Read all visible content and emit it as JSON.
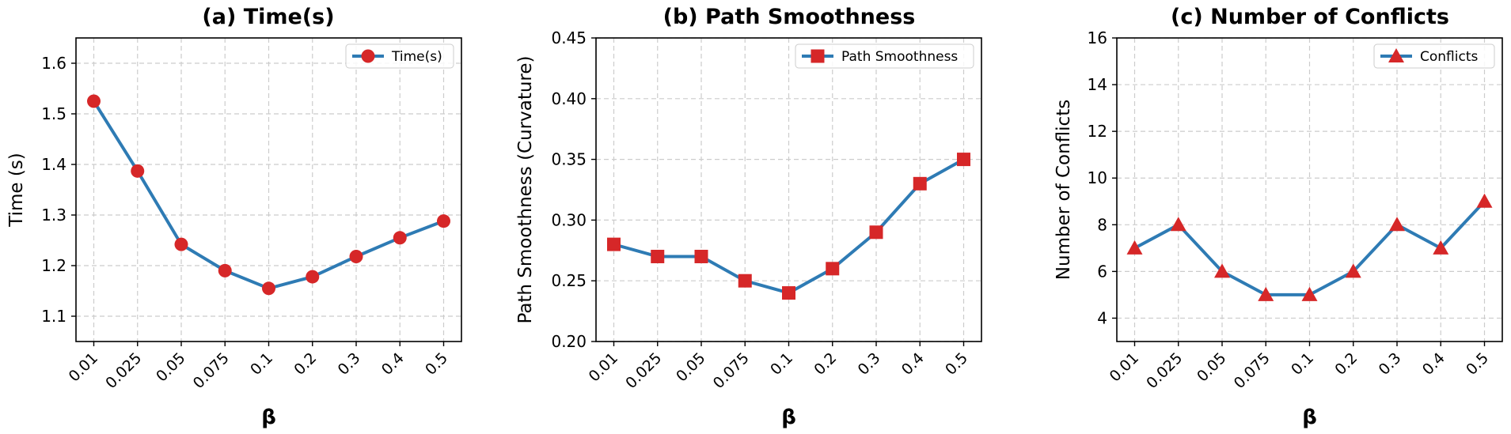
{
  "colors": {
    "line": "#2e7bb4",
    "marker": "#d62728",
    "grid": "#cccccc",
    "axis": "#000000"
  },
  "chart_data": [
    {
      "type": "line",
      "title": "(a) Time(s)",
      "xlabel": "β",
      "ylabel": "Time (s)",
      "categories": [
        "0.01",
        "0.025",
        "0.05",
        "0.075",
        "0.1",
        "0.2",
        "0.3",
        "0.4",
        "0.5"
      ],
      "ylim": [
        1.05,
        1.65
      ],
      "yticks": [
        "1.1",
        "1.2",
        "1.3",
        "1.4",
        "1.5",
        "1.6"
      ],
      "marker": "circle",
      "legend_position": "top-right",
      "grid": true,
      "series": [
        {
          "name": "Time(s)",
          "values": [
            1.525,
            1.387,
            1.242,
            1.19,
            1.155,
            1.178,
            1.218,
            1.255,
            1.288
          ]
        }
      ]
    },
    {
      "type": "line",
      "title": "(b) Path Smoothness",
      "xlabel": "β",
      "ylabel": "Path Smoothness (Curvature)",
      "categories": [
        "0.01",
        "0.025",
        "0.05",
        "0.075",
        "0.1",
        "0.2",
        "0.3",
        "0.4",
        "0.5"
      ],
      "ylim": [
        0.2,
        0.45
      ],
      "yticks": [
        "0.20",
        "0.25",
        "0.30",
        "0.35",
        "0.40",
        "0.45"
      ],
      "marker": "square",
      "legend_position": "top-right",
      "grid": true,
      "series": [
        {
          "name": "Path Smoothness",
          "values": [
            0.28,
            0.27,
            0.27,
            0.25,
            0.24,
            0.26,
            0.29,
            0.33,
            0.35
          ]
        }
      ]
    },
    {
      "type": "line",
      "title": "(c) Number of Conflicts",
      "xlabel": "β",
      "ylabel": "Number of Conflicts",
      "categories": [
        "0.01",
        "0.025",
        "0.05",
        "0.075",
        "0.1",
        "0.2",
        "0.3",
        "0.4",
        "0.5"
      ],
      "ylim": [
        3,
        16
      ],
      "yticks": [
        "4",
        "6",
        "8",
        "10",
        "12",
        "14",
        "16"
      ],
      "marker": "triangle",
      "legend_position": "top-right",
      "grid": true,
      "series": [
        {
          "name": "Conflicts",
          "values": [
            7,
            8,
            6,
            5,
            5,
            6,
            8,
            7,
            9
          ]
        }
      ]
    }
  ]
}
